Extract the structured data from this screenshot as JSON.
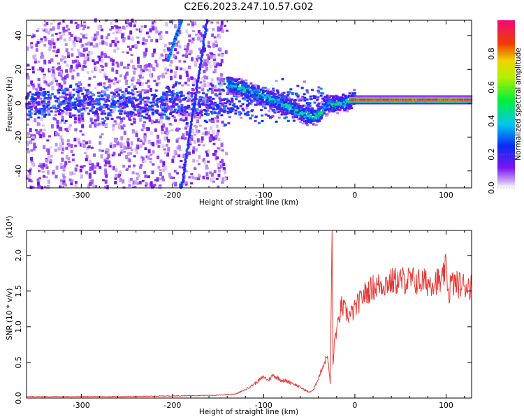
{
  "title": "C2E6.2023.247.10.57.G02",
  "chart_data": [
    {
      "type": "heatmap",
      "xlabel": "Height of straight line (km)",
      "ylabel": "Frequency (Hz)",
      "xlim": [
        -360,
        128
      ],
      "ylim": [
        -50,
        49
      ],
      "xticks": [
        -300,
        -200,
        -100,
        0,
        100
      ],
      "yticks": [
        -40,
        -20,
        0,
        20,
        40
      ],
      "colorbar": {
        "label": "Normalized spectral amplitude",
        "range": [
          0,
          1
        ],
        "ticks": [
          0.0,
          0.2,
          0.4,
          0.6,
          0.8
        ],
        "colormap": "rainbow (white → violet → blue → cyan → green → yellow → red → magenta)"
      },
      "features": [
        {
          "name": "diffuse noise",
          "x_range": [
            -360,
            -140
          ],
          "freq_range": [
            -50,
            49
          ],
          "amplitude": 0.1
        },
        {
          "name": "central band",
          "x_range": [
            -360,
            -30
          ],
          "freq_center": 0,
          "amplitude": 0.3
        },
        {
          "name": "steep streak A",
          "points": [
            [
              -190,
              49
            ],
            [
              -205,
              25
            ]
          ],
          "amplitude": 0.35
        },
        {
          "name": "steep streak B",
          "points": [
            [
              -162,
              49
            ],
            [
              -190,
              -50
            ]
          ],
          "amplitude": 0.25
        },
        {
          "name": "descending band",
          "points": [
            [
              -140,
              12
            ],
            [
              -100,
              4
            ],
            [
              -70,
              -3
            ],
            [
              -50,
              -8
            ],
            [
              -40,
              -7
            ],
            [
              -30,
              -1
            ],
            [
              -15,
              0
            ],
            [
              -5,
              1
            ],
            [
              0,
              3
            ]
          ],
          "amplitude": 0.45
        },
        {
          "name": "carrier line",
          "x_range": [
            -5,
            128
          ],
          "freq": 2,
          "amplitude": 0.95
        }
      ]
    },
    {
      "type": "line",
      "xlabel": "Height of straight line (km)",
      "ylabel": "SNR (10 * v/v)",
      "y_multiplier": "(x10⁴)",
      "xlim": [
        -360,
        128
      ],
      "ylim": [
        0,
        2.35
      ],
      "xticks": [
        -300,
        -200,
        -100,
        0,
        100
      ],
      "yticks": [
        0.0,
        0.5,
        1.0,
        1.5,
        2.0
      ],
      "series": [
        {
          "color": "#e53935",
          "x": [
            -360,
            -300,
            -250,
            -200,
            -150,
            -130,
            -120,
            -110,
            -100,
            -95,
            -90,
            -80,
            -70,
            -60,
            -50,
            -45,
            -40,
            -35,
            -30,
            -27,
            -25,
            -24,
            -22,
            -18,
            -15,
            -10,
            -5,
            0,
            10,
            20,
            30,
            40,
            50,
            60,
            70,
            80,
            90,
            95,
            100,
            103,
            105,
            110,
            120,
            128
          ],
          "values": [
            0.02,
            0.02,
            0.02,
            0.03,
            0.04,
            0.06,
            0.12,
            0.2,
            0.3,
            0.25,
            0.32,
            0.25,
            0.22,
            0.15,
            0.08,
            0.12,
            0.28,
            0.45,
            0.6,
            0.2,
            2.35,
            0.45,
            0.85,
            1.05,
            1.3,
            1.2,
            1.15,
            1.25,
            1.45,
            1.55,
            1.6,
            1.63,
            1.65,
            1.65,
            1.63,
            1.62,
            1.65,
            1.6,
            1.85,
            1.42,
            1.6,
            1.6,
            1.58,
            1.57
          ]
        }
      ]
    }
  ]
}
